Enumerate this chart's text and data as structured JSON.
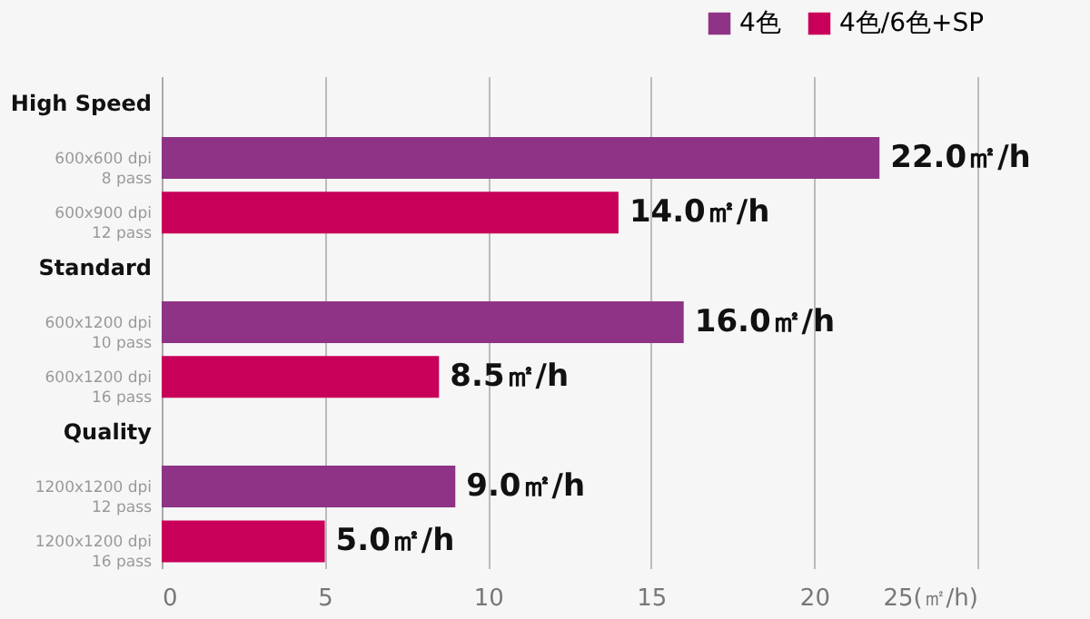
{
  "chart_data": {
    "type": "bar",
    "orientation": "horizontal",
    "categories": [
      "High Speed",
      "600x600 dpi\n8 pass",
      "600x900 dpi\n12 pass",
      "Standard",
      "600x1200 dpi\n10 pass",
      "600x1200 dpi\n16 pass",
      "Quality",
      "1200x1200 dpi\n12 pass",
      "1200x1200 dpi\n16 pass"
    ],
    "series": [
      {
        "name": "4色",
        "color": "#8e3385",
        "values": [
          null,
          22.0,
          null,
          null,
          16.0,
          null,
          null,
          9.0,
          null
        ],
        "value_labels": [
          null,
          "22.0㎡/h",
          null,
          null,
          "16.0㎡/h",
          null,
          null,
          "9.0㎡/h",
          null
        ]
      },
      {
        "name": "4色/6色+SP",
        "color": "#c8005a",
        "values": [
          null,
          null,
          14.0,
          null,
          null,
          8.5,
          null,
          null,
          5.0
        ],
        "value_labels": [
          null,
          null,
          "14.0㎡/h",
          null,
          null,
          "8.5㎡/h",
          null,
          null,
          "5.0㎡/h"
        ]
      }
    ],
    "xlim": [
      0,
      25
    ],
    "xticks": [
      0,
      5,
      10,
      15,
      20,
      {
        "value": 25,
        "label": "25(㎡/h)"
      }
    ],
    "grid": "x",
    "legend": "top right"
  }
}
